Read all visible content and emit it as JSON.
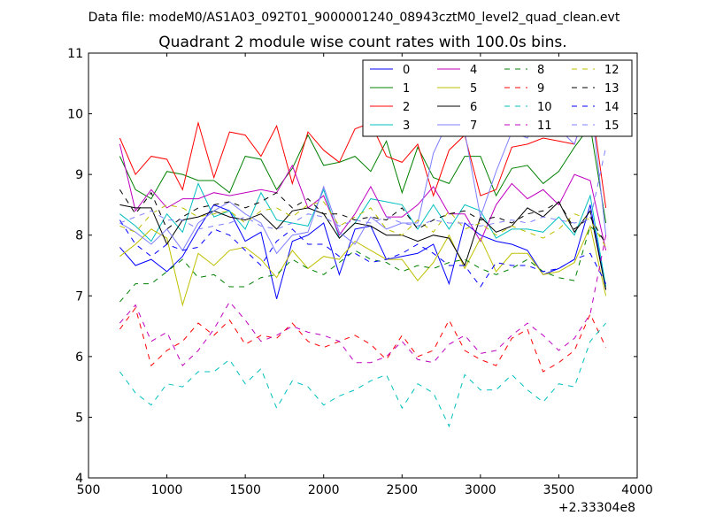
{
  "chart_data": {
    "type": "line",
    "suptitle": "Data file: modeM0/AS1A03_092T01_9000001240_08943cztM0_level2_quad_clean.evt",
    "title": "Quadrant 2 module wise count rates with 100.0s bins.",
    "xlabel": "",
    "ylabel": "",
    "x_offset_label": "+2.33304e8",
    "xlim": [
      500,
      4000
    ],
    "ylim": [
      4,
      11
    ],
    "xticks": [
      500,
      1000,
      1500,
      2000,
      2500,
      3000,
      3500,
      4000
    ],
    "yticks": [
      4,
      5,
      6,
      7,
      8,
      9,
      10,
      11
    ],
    "grid": false,
    "legend": "top-right",
    "x": [
      700,
      800,
      900,
      1000,
      1100,
      1200,
      1300,
      1400,
      1500,
      1600,
      1700,
      1800,
      1900,
      2000,
      2100,
      2200,
      2300,
      2400,
      2500,
      2600,
      2700,
      2800,
      2900,
      3000,
      3100,
      3200,
      3300,
      3400,
      3500,
      3600,
      3700,
      3800
    ],
    "series": [
      {
        "name": "0",
        "color": "#0000ff",
        "dash": "solid",
        "values": [
          7.8,
          7.5,
          7.6,
          7.4,
          7.65,
          8.1,
          8.5,
          8.4,
          7.9,
          8.05,
          6.95,
          7.9,
          8.0,
          8.2,
          7.35,
          8.1,
          8.15,
          7.6,
          7.65,
          7.7,
          7.85,
          7.2,
          8.2,
          8.0,
          7.9,
          7.85,
          7.75,
          7.35,
          7.45,
          7.6,
          8.5,
          7.1
        ]
      },
      {
        "name": "1",
        "color": "#008000",
        "dash": "solid",
        "values": [
          9.3,
          8.75,
          8.6,
          9.05,
          9.0,
          8.9,
          8.9,
          8.7,
          9.3,
          9.25,
          8.75,
          9.1,
          9.65,
          9.15,
          9.2,
          9.3,
          9.05,
          9.55,
          8.7,
          9.45,
          8.95,
          8.85,
          9.3,
          9.3,
          8.65,
          9.1,
          9.15,
          8.85,
          9.05,
          9.45,
          9.8,
          8.2
        ]
      },
      {
        "name": "2",
        "color": "#ff0000",
        "dash": "solid",
        "values": [
          9.6,
          9.0,
          9.3,
          9.25,
          8.75,
          9.85,
          8.95,
          9.7,
          9.65,
          9.3,
          9.8,
          8.85,
          9.7,
          9.4,
          9.2,
          9.75,
          9.85,
          9.3,
          9.2,
          9.5,
          8.65,
          9.4,
          9.65,
          8.65,
          8.75,
          9.45,
          9.5,
          9.6,
          9.55,
          9.5,
          10.3,
          8.45
        ]
      },
      {
        "name": "3",
        "color": "#00bfbf",
        "dash": "solid",
        "values": [
          8.35,
          8.15,
          7.9,
          8.35,
          8.05,
          8.85,
          8.3,
          8.4,
          8.1,
          8.7,
          8.25,
          8.2,
          8.15,
          8.75,
          7.95,
          8.2,
          8.6,
          8.55,
          8.5,
          8.1,
          8.5,
          8.1,
          8.5,
          8.4,
          7.95,
          8.1,
          8.1,
          8.05,
          8.3,
          8.0,
          8.65,
          7.15
        ]
      },
      {
        "name": "4",
        "color": "#bf00bf",
        "dash": "solid",
        "values": [
          9.5,
          8.4,
          8.75,
          8.45,
          8.6,
          8.6,
          8.7,
          8.65,
          8.7,
          8.75,
          8.7,
          9.15,
          8.45,
          8.65,
          8.0,
          8.35,
          8.8,
          8.3,
          8.3,
          8.5,
          8.8,
          8.35,
          8.35,
          7.9,
          8.5,
          8.85,
          8.6,
          8.75,
          8.5,
          9.0,
          8.9,
          7.75
        ]
      },
      {
        "name": "5",
        "color": "#bfbf00",
        "dash": "solid",
        "values": [
          7.65,
          7.85,
          8.1,
          7.95,
          6.85,
          7.7,
          7.5,
          7.75,
          7.8,
          7.6,
          7.3,
          7.75,
          7.45,
          7.65,
          7.6,
          7.9,
          7.75,
          7.6,
          7.6,
          7.25,
          7.55,
          8.0,
          7.45,
          7.95,
          7.4,
          7.7,
          7.7,
          7.35,
          7.4,
          7.55,
          8.15,
          7.0
        ]
      },
      {
        "name": "6",
        "color": "#000000",
        "dash": "solid",
        "values": [
          8.5,
          8.45,
          8.45,
          7.85,
          8.25,
          8.3,
          8.4,
          8.3,
          8.25,
          8.35,
          8.1,
          8.4,
          8.45,
          8.35,
          7.95,
          8.2,
          8.15,
          8.0,
          8.0,
          7.9,
          8.0,
          7.95,
          7.5,
          8.3,
          8.05,
          8.15,
          8.45,
          8.3,
          8.55,
          8.05,
          8.4,
          7.1
        ]
      },
      {
        "name": "7",
        "color": "#7f7fff",
        "dash": "solid",
        "values": [
          8.2,
          8.05,
          7.85,
          8.1,
          7.75,
          8.2,
          8.4,
          8.55,
          8.35,
          8.2,
          7.7,
          8.0,
          8.05,
          8.8,
          8.05,
          7.85,
          8.3,
          8.1,
          8.2,
          8.2,
          9.35,
          9.9,
          9.7,
          8.3,
          9.05,
          9.7,
          9.6,
          10.05,
          9.75,
          9.5,
          10.3,
          8.0
        ]
      },
      {
        "name": "8",
        "color": "#008000",
        "dash": "dashed",
        "values": [
          6.9,
          7.2,
          7.2,
          7.4,
          7.6,
          7.3,
          7.35,
          7.15,
          7.15,
          7.3,
          7.35,
          7.6,
          7.45,
          7.35,
          7.55,
          7.75,
          7.6,
          7.55,
          7.4,
          7.5,
          7.45,
          7.55,
          7.6,
          7.45,
          7.35,
          7.45,
          7.6,
          7.4,
          7.3,
          7.25,
          8.15,
          7.9
        ]
      },
      {
        "name": "9",
        "color": "#ff0000",
        "dash": "dashed",
        "values": [
          6.45,
          6.8,
          5.85,
          6.1,
          6.25,
          6.55,
          6.35,
          6.6,
          6.2,
          6.35,
          6.3,
          6.55,
          6.25,
          6.15,
          6.25,
          6.35,
          6.2,
          5.95,
          6.35,
          6.0,
          6.1,
          6.6,
          6.1,
          5.95,
          5.85,
          6.3,
          6.45,
          5.75,
          5.9,
          6.1,
          6.7,
          6.15
        ]
      },
      {
        "name": "10",
        "color": "#00bfbf",
        "dash": "dashed",
        "values": [
          5.75,
          5.4,
          5.2,
          5.55,
          5.5,
          5.75,
          5.75,
          5.95,
          5.55,
          5.8,
          5.15,
          5.6,
          5.5,
          5.2,
          5.35,
          5.45,
          5.6,
          5.7,
          5.15,
          5.55,
          5.4,
          4.85,
          5.7,
          5.45,
          5.45,
          5.7,
          5.45,
          5.25,
          5.55,
          5.5,
          6.25,
          6.55
        ]
      },
      {
        "name": "11",
        "color": "#bf00bf",
        "dash": "dashed",
        "values": [
          6.55,
          6.85,
          6.25,
          6.4,
          5.85,
          6.1,
          6.45,
          6.9,
          6.6,
          6.25,
          6.35,
          6.5,
          6.4,
          6.35,
          6.25,
          5.9,
          5.9,
          6.0,
          6.25,
          5.95,
          5.9,
          6.2,
          6.35,
          6.05,
          6.1,
          6.35,
          6.55,
          6.35,
          6.1,
          6.3,
          6.7,
          8.0
        ]
      },
      {
        "name": "12",
        "color": "#bfbf00",
        "dash": "dashed",
        "values": [
          8.15,
          8.05,
          8.35,
          8.5,
          8.45,
          8.3,
          8.35,
          8.4,
          8.2,
          8.4,
          8.45,
          8.3,
          8.5,
          8.55,
          8.15,
          8.3,
          8.45,
          8.1,
          8.0,
          8.25,
          8.05,
          8.4,
          8.1,
          8.2,
          8.0,
          8.15,
          8.05,
          7.95,
          8.1,
          8.35,
          8.25,
          7.8
        ]
      },
      {
        "name": "13",
        "color": "#000000",
        "dash": "dashed",
        "values": [
          8.75,
          8.35,
          8.7,
          8.1,
          8.3,
          8.45,
          8.5,
          8.55,
          8.45,
          8.55,
          8.7,
          8.45,
          8.6,
          8.35,
          8.35,
          8.25,
          8.3,
          8.25,
          8.45,
          8.1,
          8.25,
          8.35,
          8.4,
          8.25,
          8.3,
          8.2,
          8.35,
          8.4,
          8.55,
          8.1,
          8.3,
          7.85
        ]
      },
      {
        "name": "14",
        "color": "#0000ff",
        "dash": "dashed",
        "values": [
          8.25,
          7.85,
          7.65,
          7.85,
          7.75,
          7.8,
          8.1,
          8.0,
          7.75,
          7.5,
          7.9,
          8.1,
          7.85,
          7.85,
          7.65,
          7.7,
          7.55,
          7.6,
          7.7,
          7.85,
          7.7,
          7.5,
          7.5,
          7.15,
          7.55,
          7.5,
          7.5,
          7.4,
          7.45,
          7.6,
          7.7,
          7.2
        ]
      },
      {
        "name": "15",
        "color": "#7f7fff",
        "dash": "dashed",
        "values": [
          8.2,
          8.3,
          8.4,
          8.25,
          8.25,
          8.1,
          8.15,
          8.2,
          8.3,
          8.15,
          8.1,
          8.2,
          8.35,
          8.3,
          8.15,
          8.25,
          8.2,
          8.3,
          8.2,
          8.15,
          8.25,
          8.2,
          8.2,
          8.15,
          8.2,
          8.25,
          8.2,
          8.3,
          8.25,
          8.2,
          8.25,
          9.45
        ]
      }
    ]
  }
}
